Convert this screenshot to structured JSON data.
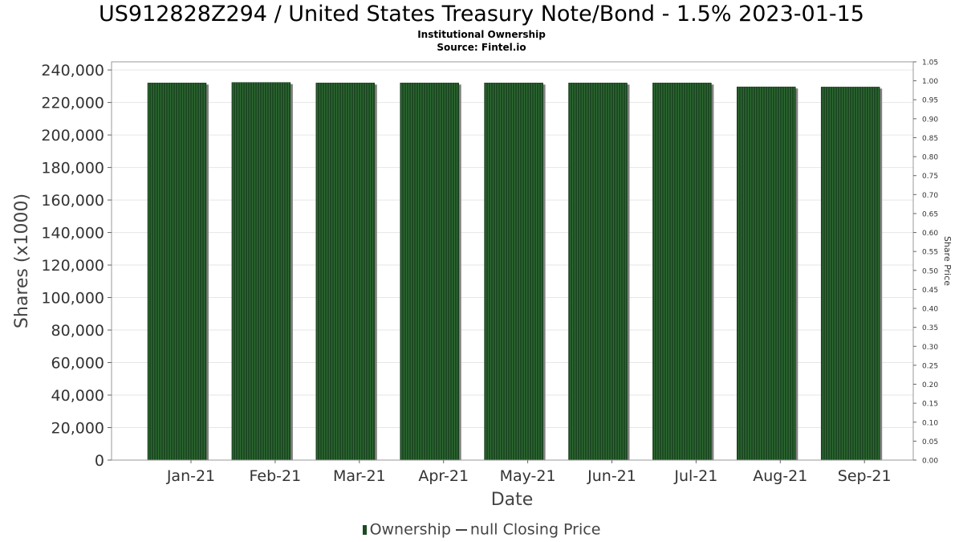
{
  "header": {
    "title": "US912828Z294 / United States Treasury Note/Bond - 1.5% 2023-01-15",
    "subtitle": "Institutional Ownership",
    "source": "Source: Fintel.io"
  },
  "legend": {
    "ownership": "Ownership",
    "closing_price": "null Closing Price"
  },
  "colors": {
    "bar": "#1c4a22",
    "bar_stripe": "#2f6b33",
    "bar_shadow": "#808080",
    "grid": "#e6e6e6"
  },
  "chart_data": {
    "type": "bar",
    "categories": [
      "Jan-21",
      "Feb-21",
      "Mar-21",
      "Apr-21",
      "May-21",
      "Jun-21",
      "Jul-21",
      "Aug-21",
      "Sep-21"
    ],
    "series": [
      {
        "name": "Ownership",
        "values": [
          232000,
          232300,
          232000,
          232000,
          232000,
          232000,
          232000,
          229600,
          229500
        ]
      }
    ],
    "xlabel": "Date",
    "ylabel": "Shares (x1000)",
    "ylim": [
      0,
      245000
    ],
    "yticks": [
      "0",
      "20,000",
      "40,000",
      "60,000",
      "80,000",
      "100,000",
      "120,000",
      "140,000",
      "160,000",
      "180,000",
      "200,000",
      "220,000",
      "240,000"
    ],
    "y2label": "Share Price",
    "y2lim": [
      0,
      1.05
    ],
    "y2ticks": [
      "0.00",
      "0.05",
      "0.10",
      "0.15",
      "0.20",
      "0.25",
      "0.30",
      "0.35",
      "0.40",
      "0.45",
      "0.50",
      "0.55",
      "0.60",
      "0.65",
      "0.70",
      "0.75",
      "0.80",
      "0.85",
      "0.90",
      "0.95",
      "1.00",
      "1.05"
    ],
    "grid": true,
    "legend_position": "bottom"
  }
}
